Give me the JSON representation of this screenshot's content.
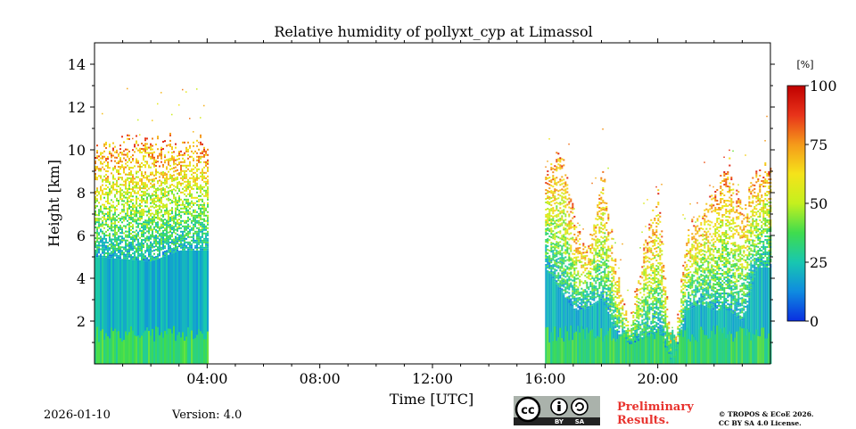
{
  "chart_data": {
    "type": "heatmap",
    "title": "Relative humidity of pollyxt_cyp at Limassol",
    "xlabel": "Time [UTC]",
    "ylabel": "Height [km]",
    "xlim_hours": [
      0,
      24
    ],
    "ylim_km": [
      0,
      15
    ],
    "x_tick_hours": [
      4,
      8,
      12,
      16,
      20
    ],
    "x_tick_labels": [
      "04:00",
      "08:00",
      "12:00",
      "16:00",
      "20:00"
    ],
    "y_ticks": [
      2,
      4,
      6,
      8,
      10,
      12,
      14
    ],
    "y_tick_labels": [
      "2",
      "4",
      "6",
      "8",
      "10",
      "12",
      "14"
    ],
    "colorbar": {
      "label": "[%]",
      "range": [
        0,
        100
      ],
      "ticks": [
        0,
        25,
        50,
        75,
        100
      ],
      "tick_labels": [
        "0",
        "25",
        "50",
        "75",
        "100"
      ],
      "colormap": [
        "#0a2ee0",
        "#0f8be0",
        "#18c7b0",
        "#3fdc4e",
        "#c4f01e",
        "#f5e31a",
        "#f59a1a",
        "#e8331a",
        "#c00000"
      ]
    },
    "data_segments": [
      {
        "name": "night",
        "start_hour": 0.0,
        "end_hour": 4.0,
        "columns": [
          {
            "start_hour": 0.0,
            "top_km": 10.0,
            "core_top_km": 5.0
          },
          {
            "start_hour": 1.0,
            "top_km": 10.5,
            "core_top_km": 4.9
          },
          {
            "start_hour": 2.0,
            "top_km": 10.5,
            "core_top_km": 4.8
          },
          {
            "start_hour": 3.0,
            "top_km": 10.3,
            "core_top_km": 5.3
          }
        ]
      },
      {
        "name": "afternoon",
        "start_hour": 16.0,
        "end_hour": 24.0,
        "columns": [
          {
            "start_hour": 16.0,
            "top_km": 9.0,
            "core_top_km": 4.5
          },
          {
            "start_hour": 16.5,
            "top_km": 10.0,
            "core_top_km": 3.5
          },
          {
            "start_hour": 17.0,
            "top_km": 7.0,
            "core_top_km": 2.5
          },
          {
            "start_hour": 17.5,
            "top_km": 5.0,
            "core_top_km": 2.6
          },
          {
            "start_hour": 18.0,
            "top_km": 9.0,
            "core_top_km": 3.0
          },
          {
            "start_hour": 18.5,
            "top_km": 4.5,
            "core_top_km": 1.5
          },
          {
            "start_hour": 19.0,
            "top_km": 1.8,
            "core_top_km": 0.9
          },
          {
            "start_hour": 19.5,
            "top_km": 5.5,
            "core_top_km": 1.2
          },
          {
            "start_hour": 20.0,
            "top_km": 8.0,
            "core_top_km": 1.5
          },
          {
            "start_hour": 20.5,
            "top_km": 0.0,
            "core_top_km": 0.0
          },
          {
            "start_hour": 21.0,
            "top_km": 6.0,
            "core_top_km": 2.5
          },
          {
            "start_hour": 21.5,
            "top_km": 7.0,
            "core_top_km": 2.8
          },
          {
            "start_hour": 22.0,
            "top_km": 8.0,
            "core_top_km": 2.5
          },
          {
            "start_hour": 22.5,
            "top_km": 9.5,
            "core_top_km": 2.5
          },
          {
            "start_hour": 23.0,
            "top_km": 7.0,
            "core_top_km": 2.0
          },
          {
            "start_hour": 23.5,
            "top_km": 9.0,
            "core_top_km": 4.5
          }
        ]
      }
    ]
  },
  "footer": {
    "date": "2026-01-10",
    "version": "Version: 4.0",
    "preliminary_line1": "Preliminary",
    "preliminary_line2": "Results.",
    "copyright_line1": "© TROPOS & ECoE 2026.",
    "copyright_line2": "CC BY SA 4.0 License.",
    "license_badge": {
      "cc": "cc",
      "by": "BY",
      "sa": "SA",
      "bg": "#aab2ab",
      "band": "#222222"
    }
  }
}
